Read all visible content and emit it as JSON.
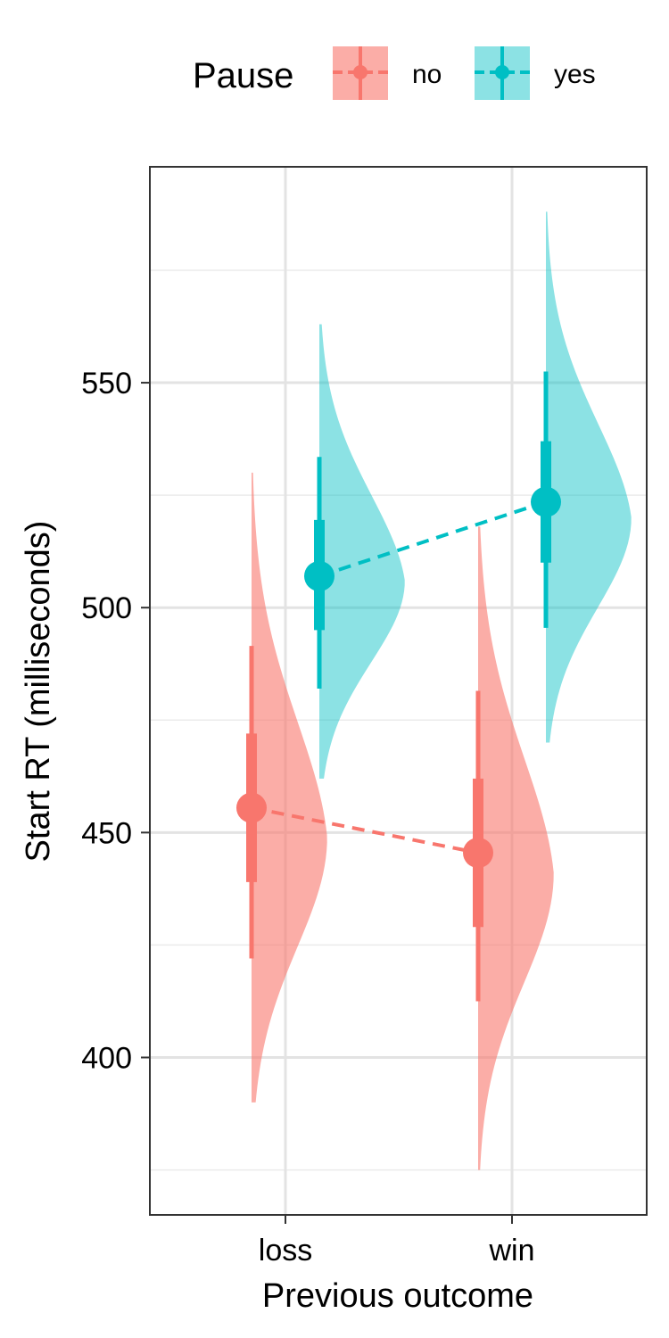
{
  "chart_data": {
    "type": "raincloud",
    "title": "",
    "xlabel": "Previous outcome",
    "ylabel": "Start RT (milliseconds)",
    "categories": [
      "loss",
      "win"
    ],
    "ylim": [
      365,
      598
    ],
    "yticks": [
      400,
      450,
      500,
      550
    ],
    "grid": true,
    "legend": {
      "title": "Pause",
      "position": "top",
      "entries": [
        "no",
        "yes"
      ]
    },
    "series": [
      {
        "name": "no",
        "color": "#F8766D",
        "points": [
          {
            "x": "loss",
            "mean": 455.5,
            "inner": [
              439,
              472
            ],
            "outer": [
              422,
              491.5
            ],
            "density_range": [
              390,
              530
            ],
            "mode": 449
          },
          {
            "x": "win",
            "mean": 445.5,
            "inner": [
              429,
              462
            ],
            "outer": [
              412.5,
              481.5
            ],
            "density_range": [
              375,
              518
            ],
            "mode": 441
          }
        ]
      },
      {
        "name": "yes",
        "color": "#00BFC4",
        "points": [
          {
            "x": "loss",
            "mean": 507,
            "inner": [
              495,
              519.5
            ],
            "outer": [
              482,
              533.5
            ],
            "density_range": [
              462,
              563
            ],
            "mode": 506
          },
          {
            "x": "win",
            "mean": 523.5,
            "inner": [
              510,
              537
            ],
            "outer": [
              495.5,
              552.5
            ],
            "density_range": [
              470,
              588
            ],
            "mode": 520
          }
        ]
      }
    ]
  }
}
